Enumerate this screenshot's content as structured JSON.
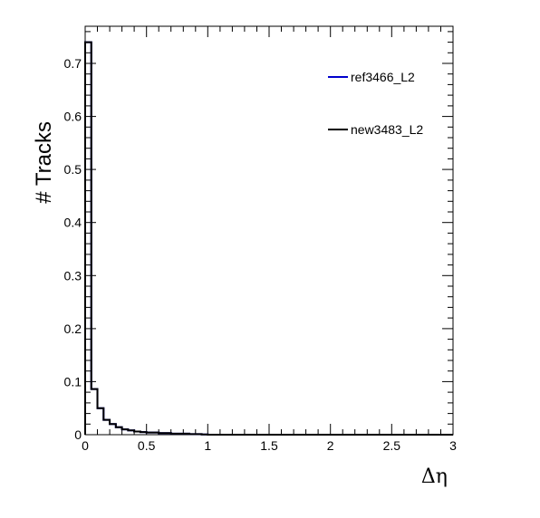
{
  "chart_data": {
    "type": "line",
    "title": "",
    "xlabel": "Δη",
    "ylabel": "# Tracks",
    "xlim": [
      0,
      3
    ],
    "ylim": [
      0,
      0.77
    ],
    "x_ticks": [
      "0",
      "0.5",
      "1",
      "1.5",
      "2",
      "2.5",
      "3"
    ],
    "y_ticks": [
      "0",
      "0.1",
      "0.2",
      "0.3",
      "0.4",
      "0.5",
      "0.6",
      "0.7"
    ],
    "grid": false,
    "legend_position": "top-right",
    "bin_edges": [
      0,
      0.05,
      0.1,
      0.15,
      0.2,
      0.25,
      0.3,
      0.35,
      0.4,
      0.45,
      0.5,
      0.55,
      0.6,
      0.65,
      0.7,
      0.75,
      0.8,
      0.85,
      0.9,
      0.95,
      1.0
    ],
    "series": [
      {
        "name": "ref3466_L2",
        "color": "#0000cc",
        "values": [
          0.74,
          0.086,
          0.05,
          0.028,
          0.02,
          0.014,
          0.01,
          0.008,
          0.006,
          0.005,
          0.004,
          0.004,
          0.003,
          0.003,
          0.002,
          0.002,
          0.002,
          0.001,
          0.001,
          0.0005
        ]
      },
      {
        "name": "new3483_L2",
        "color": "#000000",
        "values": [
          0.74,
          0.086,
          0.05,
          0.028,
          0.02,
          0.014,
          0.01,
          0.008,
          0.006,
          0.005,
          0.004,
          0.004,
          0.003,
          0.003,
          0.002,
          0.002,
          0.002,
          0.001,
          0.001,
          0.0005
        ]
      }
    ]
  }
}
